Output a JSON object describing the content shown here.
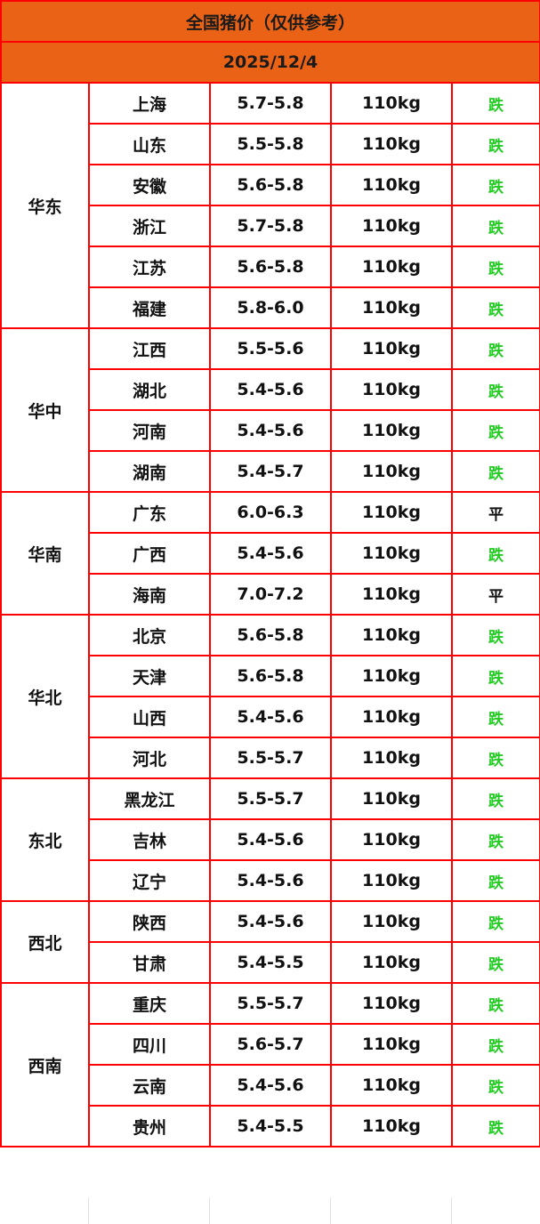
{
  "title": "全国猪价（仅供参考）",
  "date": "2025/12/4",
  "colors": {
    "header_bg": "#e96216",
    "border": "#ff0000",
    "down": "#22cc22",
    "flat": "#111111"
  },
  "regions": [
    {
      "name": "华东",
      "rows": [
        {
          "province": "上海",
          "price": "5.7-5.8",
          "weight": "110kg",
          "trend": "跌"
        },
        {
          "province": "山东",
          "price": "5.5-5.8",
          "weight": "110kg",
          "trend": "跌"
        },
        {
          "province": "安徽",
          "price": "5.6-5.8",
          "weight": "110kg",
          "trend": "跌"
        },
        {
          "province": "浙江",
          "price": "5.7-5.8",
          "weight": "110kg",
          "trend": "跌"
        },
        {
          "province": "江苏",
          "price": "5.6-5.8",
          "weight": "110kg",
          "trend": "跌"
        },
        {
          "province": "福建",
          "price": "5.8-6.0",
          "weight": "110kg",
          "trend": "跌"
        }
      ]
    },
    {
      "name": "华中",
      "rows": [
        {
          "province": "江西",
          "price": "5.5-5.6",
          "weight": "110kg",
          "trend": "跌"
        },
        {
          "province": "湖北",
          "price": "5.4-5.6",
          "weight": "110kg",
          "trend": "跌"
        },
        {
          "province": "河南",
          "price": "5.4-5.6",
          "weight": "110kg",
          "trend": "跌"
        },
        {
          "province": "湖南",
          "price": "5.4-5.7",
          "weight": "110kg",
          "trend": "跌"
        }
      ]
    },
    {
      "name": "华南",
      "rows": [
        {
          "province": "广东",
          "price": "6.0-6.3",
          "weight": "110kg",
          "trend": "平"
        },
        {
          "province": "广西",
          "price": "5.4-5.6",
          "weight": "110kg",
          "trend": "跌"
        },
        {
          "province": "海南",
          "price": "7.0-7.2",
          "weight": "110kg",
          "trend": "平"
        }
      ]
    },
    {
      "name": "华北",
      "rows": [
        {
          "province": "北京",
          "price": "5.6-5.8",
          "weight": "110kg",
          "trend": "跌"
        },
        {
          "province": "天津",
          "price": "5.6-5.8",
          "weight": "110kg",
          "trend": "跌"
        },
        {
          "province": "山西",
          "price": "5.4-5.6",
          "weight": "110kg",
          "trend": "跌"
        },
        {
          "province": "河北",
          "price": "5.5-5.7",
          "weight": "110kg",
          "trend": "跌"
        }
      ]
    },
    {
      "name": "东北",
      "rows": [
        {
          "province": "黑龙江",
          "price": "5.5-5.7",
          "weight": "110kg",
          "trend": "跌"
        },
        {
          "province": "吉林",
          "price": "5.4-5.6",
          "weight": "110kg",
          "trend": "跌"
        },
        {
          "province": "辽宁",
          "price": "5.4-5.6",
          "weight": "110kg",
          "trend": "跌"
        }
      ]
    },
    {
      "name": "西北",
      "rows": [
        {
          "province": "陕西",
          "price": "5.4-5.6",
          "weight": "110kg",
          "trend": "跌"
        },
        {
          "province": "甘肃",
          "price": "5.4-5.5",
          "weight": "110kg",
          "trend": "跌"
        }
      ]
    },
    {
      "name": "西南",
      "rows": [
        {
          "province": "重庆",
          "price": "5.5-5.7",
          "weight": "110kg",
          "trend": "跌"
        },
        {
          "province": "四川",
          "price": "5.6-5.7",
          "weight": "110kg",
          "trend": "跌"
        },
        {
          "province": "云南",
          "price": "5.4-5.6",
          "weight": "110kg",
          "trend": "跌"
        },
        {
          "province": "贵州",
          "price": "5.4-5.5",
          "weight": "110kg",
          "trend": "跌"
        }
      ]
    }
  ]
}
